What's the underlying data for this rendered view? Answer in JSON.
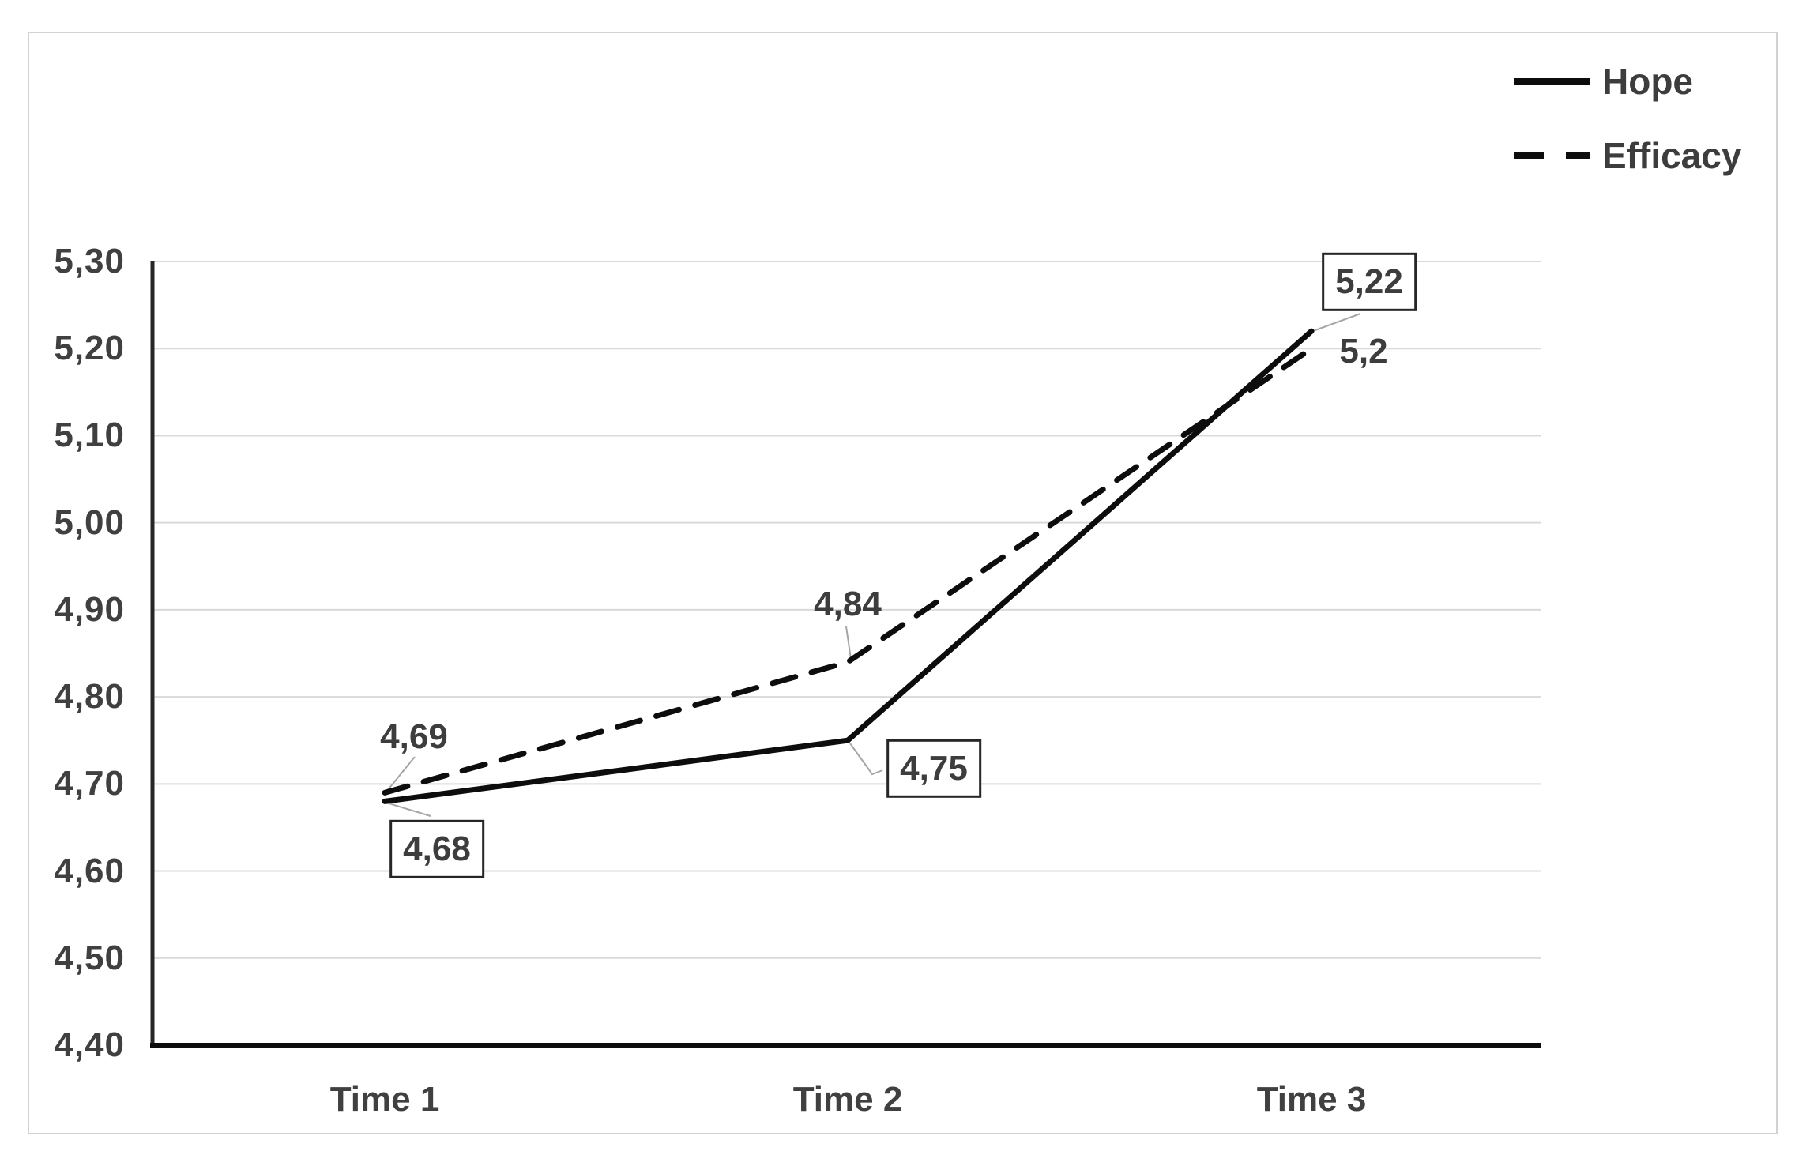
{
  "chart_data": {
    "type": "line",
    "title": "",
    "xlabel": "",
    "ylabel": "",
    "categories": [
      "Time 1",
      "Time 2",
      "Time 3"
    ],
    "series": [
      {
        "name": "Hope",
        "line_style": "solid",
        "values": [
          4.68,
          4.75,
          5.22
        ],
        "point_labels": [
          "4,68",
          "4,75",
          "5,22"
        ],
        "labels_boxed": true
      },
      {
        "name": "Efficacy",
        "line_style": "dashed",
        "values": [
          4.69,
          4.84,
          5.2
        ],
        "point_labels": [
          "4,69",
          "4,84",
          "5,2"
        ],
        "labels_boxed": false
      }
    ],
    "ylim": [
      4.4,
      5.3
    ],
    "y_axis": {
      "min": 4.4,
      "max": 5.3,
      "step": 0.1,
      "ticks": [
        {
          "value": 5.3,
          "label": "5,30"
        },
        {
          "value": 5.2,
          "label": "5,20"
        },
        {
          "value": 5.1,
          "label": "5,10"
        },
        {
          "value": 5.0,
          "label": "5,00"
        },
        {
          "value": 4.9,
          "label": "4,90"
        },
        {
          "value": 4.8,
          "label": "4,80"
        },
        {
          "value": 4.7,
          "label": "4,70"
        },
        {
          "value": 4.6,
          "label": "4,60"
        },
        {
          "value": 4.5,
          "label": "4,50"
        },
        {
          "value": 4.4,
          "label": "4,40"
        }
      ]
    },
    "decimal_separator": ",",
    "grid": true,
    "legend_position": "top-right"
  },
  "colors": {
    "line": "#0d0d0d",
    "grid": "#d9d9d9",
    "axis_y": "#262626",
    "axis_x": "#0d0d0d",
    "tick_text": "#404040",
    "label_text": "#3d3d3d",
    "label_box_border": "#262626",
    "leader": "#a6a6a6",
    "frame": "#d2d2d2",
    "background": "#ffffff"
  }
}
